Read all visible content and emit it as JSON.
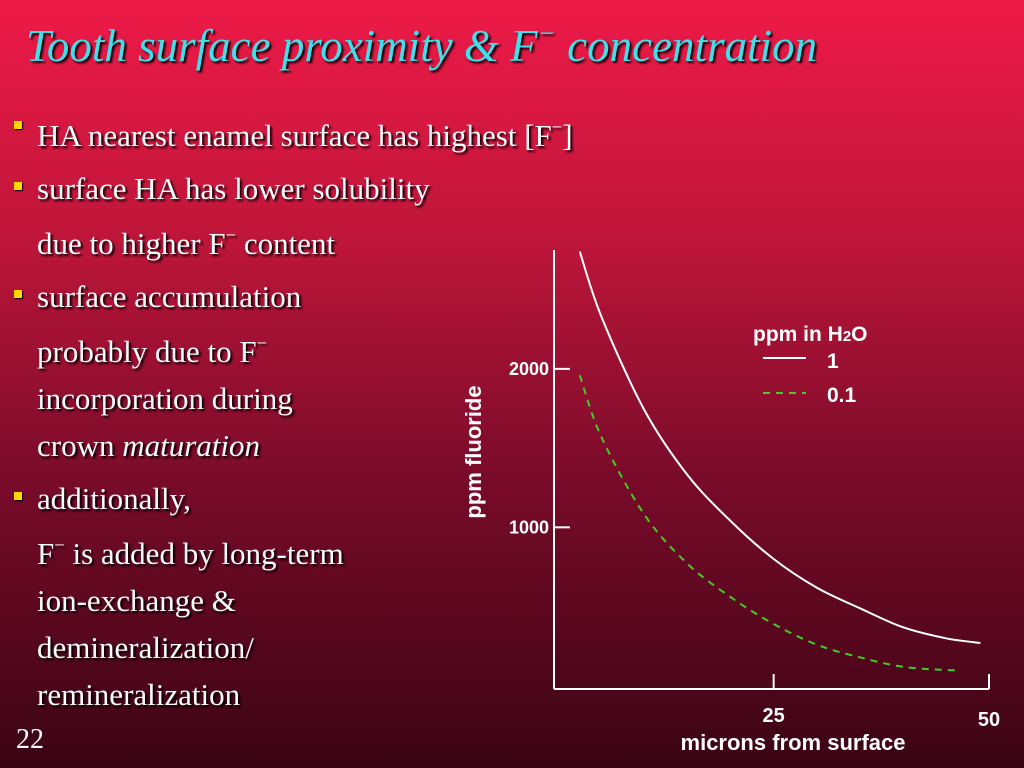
{
  "slide": {
    "title": {
      "main": "Tooth surface proximity & F",
      "sup": "−",
      "rest": " concentration"
    },
    "page_number": "22",
    "bullets": [
      {
        "lines": [
          {
            "parts": [
              {
                "t": "HA nearest enamel surface has highest [F"
              },
              {
                "t": "−",
                "sup": true
              },
              {
                "t": "]"
              }
            ]
          }
        ]
      },
      {
        "lines": [
          {
            "parts": [
              {
                "t": "surface HA has lower solubility"
              }
            ]
          },
          {
            "parts": [
              {
                "t": "due to higher F"
              },
              {
                "t": "−",
                "sup": true
              },
              {
                "t": " content"
              }
            ]
          }
        ]
      },
      {
        "lines": [
          {
            "parts": [
              {
                "t": "surface accumulation"
              }
            ]
          },
          {
            "parts": [
              {
                "t": "probably due to  F"
              },
              {
                "t": "−",
                "sup": true
              }
            ]
          },
          {
            "parts": [
              {
                "t": "incorporation during"
              }
            ]
          },
          {
            "parts": [
              {
                "t": "crown "
              },
              {
                "t": "maturation",
                "italic": true
              }
            ]
          }
        ]
      },
      {
        "lines": [
          {
            "parts": [
              {
                "t": "additionally,"
              }
            ]
          },
          {
            "parts": [
              {
                "t": "F"
              },
              {
                "t": "−",
                "sup": true
              },
              {
                "t": " is added by long-term"
              }
            ]
          },
          {
            "parts": [
              {
                "t": "ion-exchange &"
              }
            ]
          },
          {
            "parts": [
              {
                "t": "demineralization/"
              }
            ]
          },
          {
            "parts": [
              {
                "t": "remineralization"
              }
            ]
          }
        ]
      }
    ]
  },
  "chart_data": {
    "type": "line",
    "xlabel": "microns from surface",
    "ylabel": "ppm fluoride",
    "x_ticks": [
      25,
      50
    ],
    "y_ticks": [
      1000,
      2000
    ],
    "xlim": [
      -0.5,
      50
    ],
    "ylim": [
      -20,
      2750
    ],
    "legend": {
      "title": "ppm in H",
      "title_sub": "2",
      "title_end": "O",
      "position": "top-right"
    },
    "series": [
      {
        "name": "1",
        "style": "solid",
        "color": "#ffffff",
        "x": [
          2.5,
          5,
          10,
          15,
          20,
          25,
          30,
          35,
          40,
          45,
          49
        ],
        "y": [
          2740,
          2330,
          1740,
          1330,
          1040,
          800,
          620,
          490,
          370,
          300,
          270
        ]
      },
      {
        "name": "0.1",
        "style": "dashed",
        "color": "#44cc22",
        "x": [
          2.5,
          5,
          10,
          15,
          20,
          25,
          30,
          35,
          40,
          45,
          46.5
        ],
        "y": [
          1960,
          1570,
          1080,
          770,
          560,
          390,
          260,
          180,
          120,
          100,
          100
        ]
      }
    ]
  }
}
